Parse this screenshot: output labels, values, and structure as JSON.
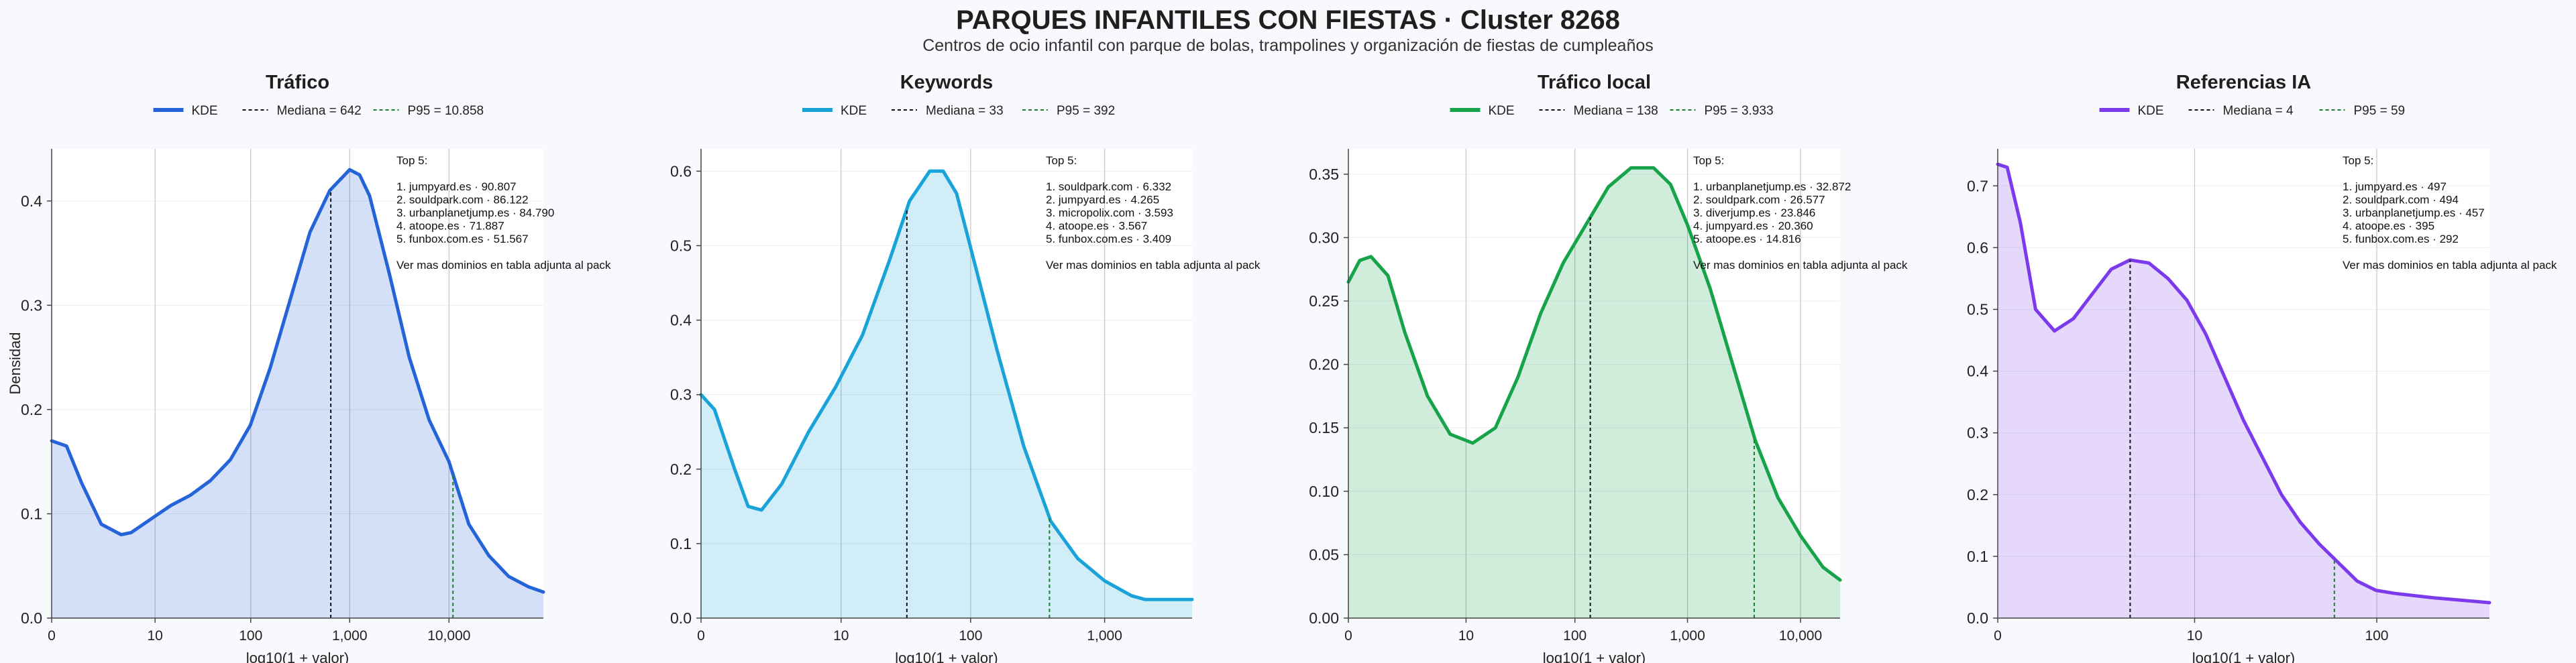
{
  "title": "PARQUES INFANTILES CON FIESTAS · Cluster 8268",
  "subtitle": "Centros de ocio infantil con parque de bolas, trampolines y organización de fiestas de cumpleaños",
  "colors": {
    "trafico": "#2563d8",
    "keywords": "#1aa3d9",
    "trafico_local": "#16a34a",
    "referencias_ia": "#7c3aed",
    "median": "#111111",
    "p95": "#1a7f2e"
  },
  "chart_data": [
    {
      "type": "area",
      "title": "Tráfico",
      "xlabel": "log10(1 + valor)",
      "ylabel": "Densidad",
      "xlim": [
        0,
        4.95
      ],
      "ylim": [
        0,
        0.45
      ],
      "yticks": [
        "0.0",
        "0.1",
        "0.2",
        "0.3",
        "0.4"
      ],
      "ytick_values": [
        0,
        0.1,
        0.2,
        0.3,
        0.4
      ],
      "xticks": [
        "0",
        "10",
        "100",
        "1,000",
        "10,000"
      ],
      "xtick_values": [
        0,
        1.041,
        2.004,
        3.0,
        4.0
      ],
      "grid": true,
      "legend": [
        "KDE",
        "Mediana = 642",
        "P95 = 10.858"
      ],
      "median": 2.81,
      "p95": 4.04,
      "series": [
        {
          "name": "KDE",
          "x": [
            0,
            0.15,
            0.3,
            0.5,
            0.7,
            0.8,
            1.0,
            1.2,
            1.4,
            1.6,
            1.8,
            2.0,
            2.2,
            2.4,
            2.6,
            2.8,
            3.0,
            3.1,
            3.2,
            3.4,
            3.6,
            3.8,
            4.0,
            4.2,
            4.4,
            4.6,
            4.8,
            4.95
          ],
          "y": [
            0.17,
            0.165,
            0.13,
            0.09,
            0.08,
            0.082,
            0.095,
            0.108,
            0.118,
            0.132,
            0.152,
            0.185,
            0.24,
            0.305,
            0.37,
            0.41,
            0.43,
            0.425,
            0.405,
            0.33,
            0.25,
            0.19,
            0.15,
            0.09,
            0.06,
            0.04,
            0.03,
            0.025
          ]
        }
      ],
      "annotation": [
        "Top 5:",
        "",
        "1. jumpyard.es · 90.807",
        "2. souldpark.com · 86.122",
        "3. urbanplanetjump.es · 84.790",
        "4. atoope.es · 71.887",
        "5. funbox.com.es · 51.567",
        "",
        "Ver mas dominios en tabla adjunta al pack"
      ]
    },
    {
      "type": "area",
      "title": "Keywords",
      "xlabel": "log10(1 + valor)",
      "ylabel": "",
      "xlim": [
        0,
        3.65
      ],
      "ylim": [
        0,
        0.63
      ],
      "yticks": [
        "0.0",
        "0.1",
        "0.2",
        "0.3",
        "0.4",
        "0.5",
        "0.6"
      ],
      "ytick_values": [
        0,
        0.1,
        0.2,
        0.3,
        0.4,
        0.5,
        0.6
      ],
      "xticks": [
        "0",
        "10",
        "100",
        "1,000"
      ],
      "xtick_values": [
        0,
        1.041,
        2.004,
        3.0
      ],
      "grid": true,
      "legend": [
        "KDE",
        "Mediana = 33",
        "P95 = 392"
      ],
      "median": 1.53,
      "p95": 2.59,
      "series": [
        {
          "name": "KDE",
          "x": [
            0,
            0.1,
            0.25,
            0.35,
            0.45,
            0.6,
            0.8,
            1.0,
            1.2,
            1.4,
            1.55,
            1.7,
            1.8,
            1.9,
            2.0,
            2.2,
            2.4,
            2.6,
            2.8,
            3.0,
            3.2,
            3.3,
            3.4,
            3.65
          ],
          "y": [
            0.3,
            0.28,
            0.2,
            0.15,
            0.145,
            0.18,
            0.25,
            0.31,
            0.38,
            0.48,
            0.56,
            0.6,
            0.6,
            0.57,
            0.5,
            0.36,
            0.23,
            0.13,
            0.08,
            0.05,
            0.03,
            0.025,
            0.025,
            0.025
          ]
        }
      ],
      "annotation": [
        "Top 5:",
        "",
        "1. souldpark.com · 6.332",
        "2. jumpyard.es · 4.265",
        "3. micropolix.com · 3.593",
        "4. atoope.es · 3.567",
        "5. funbox.com.es · 3.409",
        "",
        "Ver mas dominios en tabla adjunta al pack"
      ]
    },
    {
      "type": "area",
      "title": "Tráfico local",
      "xlabel": "log10(1 + valor)",
      "ylabel": "",
      "xlim": [
        0,
        4.35
      ],
      "ylim": [
        0,
        0.37
      ],
      "yticks": [
        "0.00",
        "0.05",
        "0.10",
        "0.15",
        "0.20",
        "0.25",
        "0.30",
        "0.35"
      ],
      "ytick_values": [
        0,
        0.05,
        0.1,
        0.15,
        0.2,
        0.25,
        0.3,
        0.35
      ],
      "xticks": [
        "0",
        "10",
        "100",
        "1,000",
        "10,000"
      ],
      "xtick_values": [
        0,
        1.041,
        2.004,
        3.0,
        4.0
      ],
      "grid": true,
      "legend": [
        "KDE",
        "Mediana = 138",
        "P95 = 3.933"
      ],
      "median": 2.14,
      "p95": 3.59,
      "series": [
        {
          "name": "KDE",
          "x": [
            0,
            0.1,
            0.2,
            0.35,
            0.5,
            0.7,
            0.9,
            1.1,
            1.3,
            1.5,
            1.7,
            1.9,
            2.1,
            2.3,
            2.5,
            2.7,
            2.85,
            3.0,
            3.2,
            3.4,
            3.6,
            3.8,
            4.0,
            4.2,
            4.35
          ],
          "y": [
            0.265,
            0.282,
            0.285,
            0.27,
            0.225,
            0.175,
            0.145,
            0.138,
            0.15,
            0.19,
            0.24,
            0.28,
            0.31,
            0.34,
            0.355,
            0.355,
            0.342,
            0.31,
            0.26,
            0.2,
            0.14,
            0.095,
            0.065,
            0.04,
            0.03
          ]
        }
      ],
      "annotation": [
        "Top 5:",
        "",
        "1. urbanplanetjump.es · 32.872",
        "2. souldpark.com · 26.577",
        "3. diverjump.es · 23.846",
        "4. jumpyard.es · 20.360",
        "5. atoope.es · 14.816",
        "",
        "Ver mas dominios en tabla adjunta al pack"
      ]
    },
    {
      "type": "area",
      "title": "Referencias IA",
      "xlabel": "log10(1 + valor)",
      "ylabel": "",
      "xlim": [
        0,
        2.6
      ],
      "ylim": [
        0,
        0.76
      ],
      "yticks": [
        "0.0",
        "0.1",
        "0.2",
        "0.3",
        "0.4",
        "0.5",
        "0.6",
        "0.7"
      ],
      "ytick_values": [
        0,
        0.1,
        0.2,
        0.3,
        0.4,
        0.5,
        0.6,
        0.7
      ],
      "xticks": [
        "0",
        "10",
        "100"
      ],
      "xtick_values": [
        0,
        1.041,
        2.004
      ],
      "grid": true,
      "legend": [
        "KDE",
        "Mediana = 4",
        "P95 = 59"
      ],
      "median": 0.7,
      "p95": 1.78,
      "series": [
        {
          "name": "KDE",
          "x": [
            0,
            0.05,
            0.12,
            0.2,
            0.3,
            0.4,
            0.5,
            0.6,
            0.7,
            0.8,
            0.9,
            1.0,
            1.1,
            1.2,
            1.3,
            1.4,
            1.5,
            1.6,
            1.7,
            1.8,
            1.9,
            2.0,
            2.1,
            2.3,
            2.6
          ],
          "y": [
            0.735,
            0.73,
            0.64,
            0.5,
            0.465,
            0.485,
            0.525,
            0.565,
            0.58,
            0.575,
            0.55,
            0.515,
            0.46,
            0.39,
            0.32,
            0.26,
            0.2,
            0.155,
            0.12,
            0.09,
            0.06,
            0.045,
            0.04,
            0.033,
            0.025
          ]
        }
      ],
      "annotation": [
        "Top 5:",
        "",
        "1. jumpyard.es · 497",
        "2. souldpark.com · 494",
        "3. urbanplanetjump.es · 457",
        "4. atoope.es · 395",
        "5. funbox.com.es · 292",
        "",
        "Ver mas dominios en tabla adjunta al pack"
      ]
    }
  ]
}
